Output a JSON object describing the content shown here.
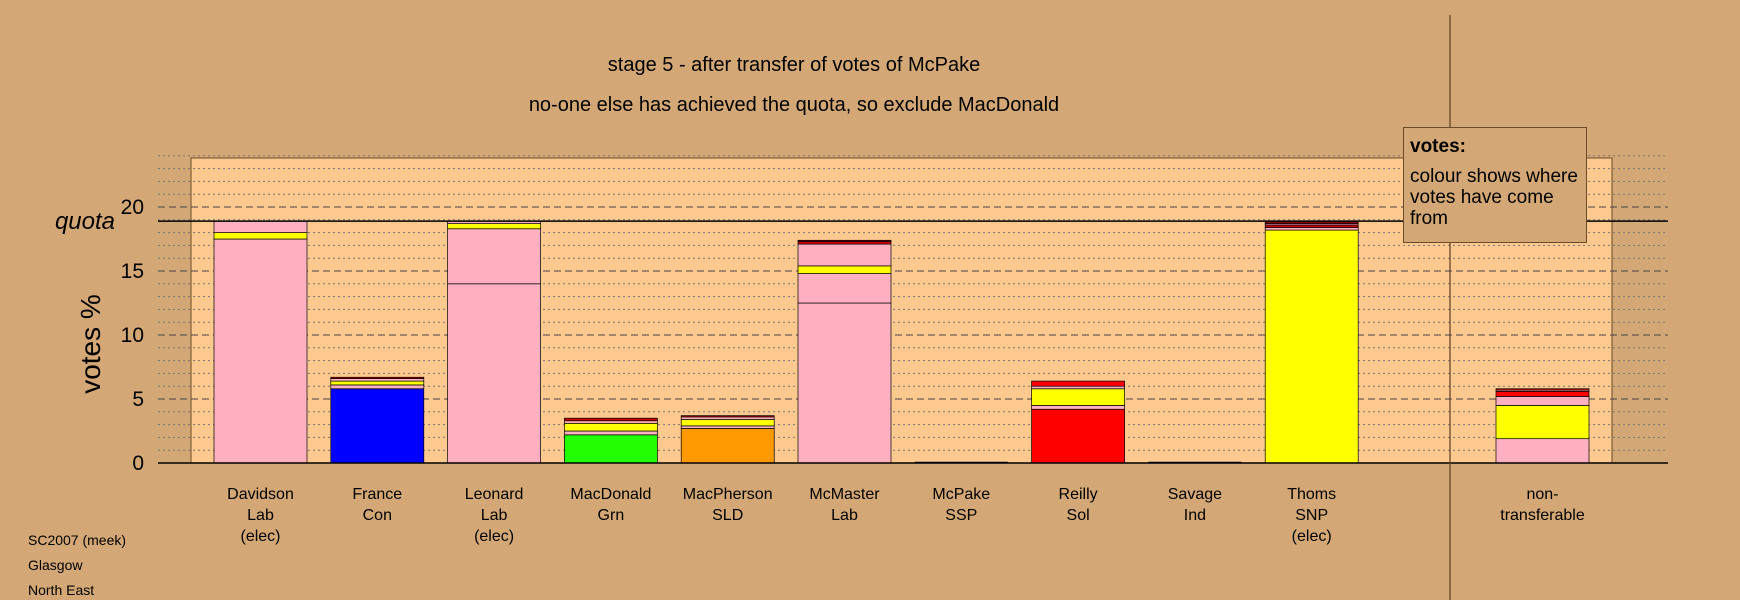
{
  "titles": {
    "line1": "stage 5 - after transfer of votes of McPake",
    "line2": "no-one else has achieved the quota, so exclude MacDonald"
  },
  "legend": {
    "title": "votes:",
    "text": "colour shows where votes have come from"
  },
  "footer": [
    "SC2007 (meek)",
    "Glasgow",
    "North East"
  ],
  "colors": {
    "background": "#d4a876",
    "plot_area": "#fdc98f",
    "Lab": "#ffb0c0",
    "SNP": "#ffff00",
    "Con": "#0000ff",
    "Grn": "#22ff00",
    "SLD": "#ff9900",
    "Sol": "#ff0000",
    "SSP": "#cc0000",
    "Ind": "#8b0000"
  },
  "chart_data": {
    "type": "bar",
    "stacked": true,
    "ylabel": "votes %",
    "ylim": [
      0,
      24
    ],
    "yticks": [
      0,
      5,
      10,
      15,
      20
    ],
    "quota": {
      "label": "quota",
      "value": 18.9
    },
    "grid": "dotted minor lines every 1%, dashed major lines every 5%",
    "categories": [
      {
        "label": [
          "Davidson",
          "Lab",
          "(elec)"
        ],
        "segments": [
          {
            "source": "Lab",
            "value": 17.5
          },
          {
            "source": "SNP",
            "value": 0.5
          },
          {
            "source": "Lab",
            "value": 0.9
          }
        ]
      },
      {
        "label": [
          "France",
          "Con"
        ],
        "segments": [
          {
            "source": "Con",
            "value": 5.8
          },
          {
            "source": "Lab",
            "value": 0.3
          },
          {
            "source": "SNP",
            "value": 0.3
          },
          {
            "source": "Lab",
            "value": 0.2
          },
          {
            "source": "SSP",
            "value": 0.1
          }
        ]
      },
      {
        "label": [
          "Leonard",
          "Lab",
          "(elec)"
        ],
        "segments": [
          {
            "source": "Lab",
            "value": 14.0
          },
          {
            "source": "Lab",
            "value": 4.3
          },
          {
            "source": "SNP",
            "value": 0.4
          },
          {
            "source": "Lab",
            "value": 0.2
          }
        ]
      },
      {
        "label": [
          "MacDonald",
          "Grn"
        ],
        "segments": [
          {
            "source": "Grn",
            "value": 2.2
          },
          {
            "source": "Lab",
            "value": 0.3
          },
          {
            "source": "SNP",
            "value": 0.6
          },
          {
            "source": "Lab",
            "value": 0.2
          },
          {
            "source": "SSP",
            "value": 0.2
          }
        ]
      },
      {
        "label": [
          "MacPherson",
          "SLD"
        ],
        "segments": [
          {
            "source": "SLD",
            "value": 2.7
          },
          {
            "source": "Lab",
            "value": 0.2
          },
          {
            "source": "SNP",
            "value": 0.5
          },
          {
            "source": "Lab",
            "value": 0.2
          },
          {
            "source": "SSP",
            "value": 0.1
          }
        ]
      },
      {
        "label": [
          "McMaster",
          "Lab"
        ],
        "segments": [
          {
            "source": "Lab",
            "value": 12.5
          },
          {
            "source": "Lab",
            "value": 2.3
          },
          {
            "source": "SNP",
            "value": 0.6
          },
          {
            "source": "Lab",
            "value": 1.7
          },
          {
            "source": "SSP",
            "value": 0.2
          },
          {
            "source": "Ind",
            "value": 0.1
          }
        ]
      },
      {
        "label": [
          "McPake",
          "SSP"
        ],
        "segments": []
      },
      {
        "label": [
          "Reilly",
          "Sol"
        ],
        "segments": [
          {
            "source": "Sol",
            "value": 4.2
          },
          {
            "source": "Lab",
            "value": 0.3
          },
          {
            "source": "SNP",
            "value": 1.3
          },
          {
            "source": "Lab",
            "value": 0.2
          },
          {
            "source": "Sol",
            "value": 0.4
          }
        ]
      },
      {
        "label": [
          "Savage",
          "Ind"
        ],
        "segments": []
      },
      {
        "label": [
          "Thoms",
          "SNP",
          "(elec)"
        ],
        "segments": [
          {
            "source": "SNP",
            "value": 18.2
          },
          {
            "source": "Lab",
            "value": 0.2
          },
          {
            "source": "SSP",
            "value": 0.2
          },
          {
            "source": "Lab",
            "value": 0.1
          },
          {
            "source": "Ind",
            "value": 0.2
          }
        ]
      },
      {
        "label": [
          "non-",
          "transferable"
        ],
        "segments": [
          {
            "source": "Lab",
            "value": 1.9
          },
          {
            "source": "SNP",
            "value": 2.6
          },
          {
            "source": "Lab",
            "value": 0.7
          },
          {
            "source": "Sol",
            "value": 0.4
          },
          {
            "source": "Lab",
            "value": 0.1
          },
          {
            "source": "Sol",
            "value": 0.1
          }
        ]
      }
    ]
  }
}
